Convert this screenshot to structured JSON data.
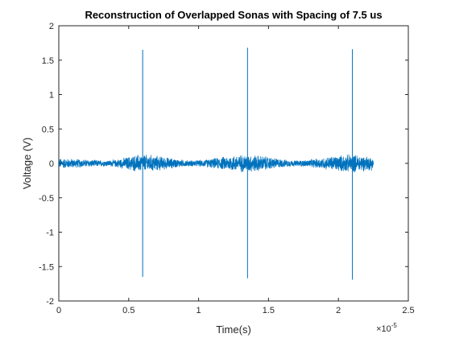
{
  "chart_data": {
    "type": "line",
    "title": "Reconstruction of Overlapped Sonas with Spacing of 7.5 us",
    "xlabel": "Time(s)",
    "ylabel": "Voltage (V)",
    "x_exponent_label": "×10",
    "x_exponent_power": "-5",
    "xlim": [
      0,
      2.5e-05
    ],
    "ylim": [
      -2,
      2
    ],
    "xticks": [
      0,
      5e-06,
      1e-05,
      1.5e-05,
      2e-05,
      2.5e-05
    ],
    "xtick_labels": [
      "0",
      "0.5",
      "1",
      "1.5",
      "2",
      "2.5"
    ],
    "yticks": [
      2,
      1.5,
      1,
      0.5,
      0,
      -0.5,
      -1,
      -1.5,
      -2
    ],
    "ytick_labels": [
      "2",
      "1.5",
      "1",
      "0.5",
      "0",
      "-0.5",
      "-1",
      "-1.5",
      "-2"
    ],
    "grid": false,
    "series": [
      {
        "color": "#0072bd",
        "x_range": [
          0,
          2.25e-05
        ],
        "noise_envelope": [
          {
            "x": 0,
            "amp": 0.08
          },
          {
            "x": 3.5e-06,
            "amp": 0.05
          },
          {
            "x": 6e-06,
            "amp": 0.14
          },
          {
            "x": 9.5e-06,
            "amp": 0.05
          },
          {
            "x": 1.35e-05,
            "amp": 0.14
          },
          {
            "x": 1.7e-05,
            "amp": 0.05
          },
          {
            "x": 2.1e-05,
            "amp": 0.14
          },
          {
            "x": 2.25e-05,
            "amp": 0.11
          }
        ],
        "spikes": [
          {
            "x": 6e-06,
            "max": 1.65,
            "min": -1.65
          },
          {
            "x": 1.35e-05,
            "max": 1.68,
            "min": -1.67
          },
          {
            "x": 2.1e-05,
            "max": 1.66,
            "min": -1.69
          }
        ]
      }
    ]
  }
}
